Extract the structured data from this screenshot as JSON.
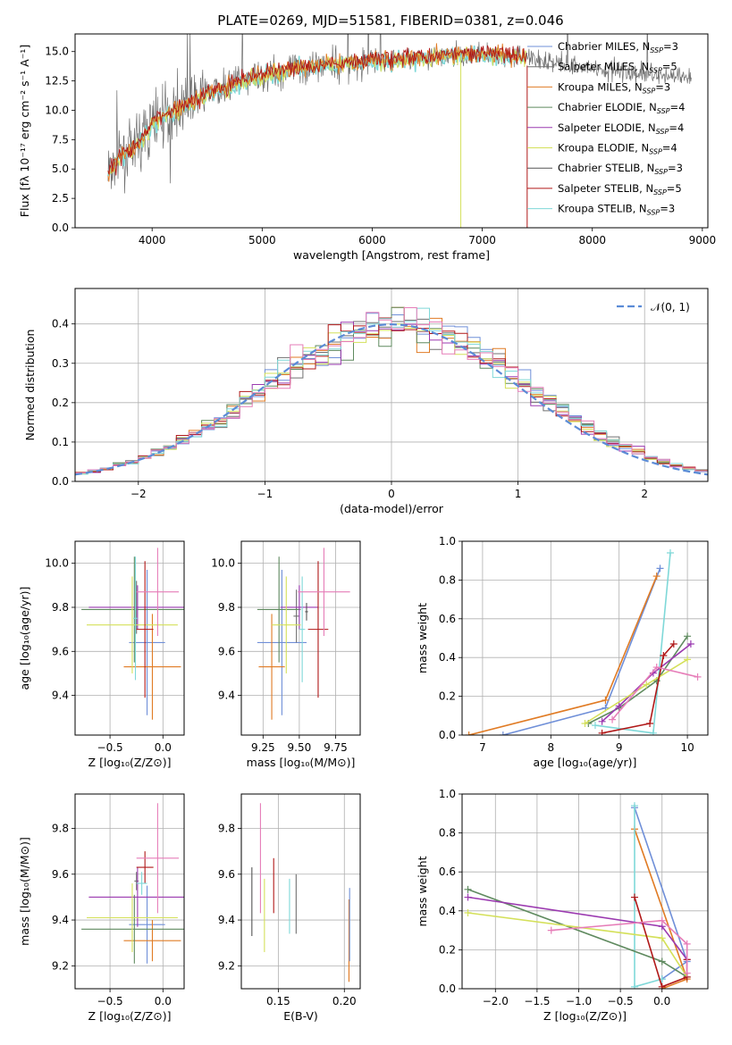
{
  "figure": {
    "title": "PLATE=0269, MJD=51581, FIBERID=0381, z=0.046"
  },
  "series": [
    {
      "name": "Chabrier MILES",
      "nssp": "3",
      "color": "#6f8fd8"
    },
    {
      "name": "Salpeter MILES",
      "nssp": "5",
      "color": "#707070"
    },
    {
      "name": "Kroupa MILES",
      "nssp": "3",
      "color": "#e07b24"
    },
    {
      "name": "Chabrier ELODIE",
      "nssp": "4",
      "color": "#5f8a5f"
    },
    {
      "name": "Salpeter ELODIE",
      "nssp": "4",
      "color": "#9b3ab0"
    },
    {
      "name": "Kroupa ELODIE",
      "nssp": "4",
      "color": "#d4e05a"
    },
    {
      "name": "Chabrier STELIB",
      "nssp": "3",
      "color": "#555555"
    },
    {
      "name": "Salpeter STELIB",
      "nssp": "5",
      "color": "#b01818"
    },
    {
      "name": "Kroupa STELIB",
      "nssp": "3",
      "color": "#7fd8d8"
    },
    {
      "name": "",
      "color": "#e67db8"
    }
  ],
  "chart_data": [
    {
      "id": "spectrum",
      "type": "line",
      "xlabel": "wavelength [Angstrom, rest frame]",
      "ylabel": "Flux [fλ 10⁻¹⁷ erg cm⁻² s⁻¹ A⁻¹]",
      "xlim": [
        3300,
        9050
      ],
      "ylim": [
        0,
        16.5
      ],
      "xticks": [
        4000,
        5000,
        6000,
        7000,
        8000,
        9000
      ],
      "yticks": [
        0.0,
        2.5,
        5.0,
        7.5,
        10.0,
        12.5,
        15.0
      ],
      "grid": false,
      "legend": "top-right",
      "continuum": {
        "x": [
          3600,
          3700,
          3800,
          3900,
          4000,
          4200,
          4500,
          5000,
          5500,
          6000,
          6500,
          7000,
          7400,
          7800,
          8200,
          8600,
          8900
        ],
        "y": [
          4.5,
          6.0,
          6.5,
          7.5,
          8.8,
          10.0,
          11.5,
          13.0,
          13.8,
          14.2,
          14.5,
          14.8,
          14.5,
          13.8,
          13.4,
          13.0,
          12.8
        ]
      },
      "data_range": [
        3600,
        8900
      ],
      "model_range": [
        3600,
        7400
      ]
    },
    {
      "id": "residuals",
      "type": "histogram",
      "xlabel": "(data-model)/error",
      "ylabel": "Normed distribution",
      "xlim": [
        -2.5,
        2.5
      ],
      "ylim": [
        0,
        0.49
      ],
      "xticks": [
        -2,
        -1,
        0,
        1,
        2
      ],
      "yticks": [
        0.0,
        0.1,
        0.2,
        0.3,
        0.4
      ],
      "grid": true,
      "legend": "top-right",
      "reference": {
        "name": "𝒩(0, 1)",
        "mean": 0.0,
        "sigma": 1.0,
        "color": "#5b8bd6"
      },
      "bins": 50
    },
    {
      "id": "age-vs-Z",
      "type": "errorbar",
      "xlabel": "Z [log₁₀(Z/Z⊙)]",
      "ylabel": "age  [log₁₀(age/yr)]",
      "xlim": [
        -0.83,
        0.2
      ],
      "ylim": [
        9.22,
        10.1
      ],
      "xticks": [
        -0.5,
        0.0
      ],
      "yticks": [
        9.4,
        9.6,
        9.8,
        10.0
      ],
      "grid": true,
      "points": [
        {
          "s": 0,
          "x": -0.15,
          "y": 9.64,
          "xerr": 0.17,
          "yerr": 0.33
        },
        {
          "s": 1,
          "x": -0.25,
          "y": 9.8,
          "xerr": 0.02,
          "yerr": 0.12
        },
        {
          "s": 2,
          "x": -0.1,
          "y": 9.53,
          "xerr": 0.27,
          "yerr": 0.24
        },
        {
          "s": 3,
          "x": -0.27,
          "y": 9.79,
          "xerr": 0.5,
          "yerr": 0.24
        },
        {
          "s": 4,
          "x": -0.24,
          "y": 9.8,
          "xerr": 0.46,
          "yerr": 0.1
        },
        {
          "s": 5,
          "x": -0.29,
          "y": 9.72,
          "xerr": 0.43,
          "yerr": 0.22
        },
        {
          "s": 7,
          "x": -0.17,
          "y": 9.7,
          "xerr": 0.08,
          "yerr": 0.31
        },
        {
          "s": 8,
          "x": -0.26,
          "y": 9.75,
          "xerr": 0.02,
          "yerr": 0.28
        },
        {
          "s": 9,
          "x": -0.05,
          "y": 9.87,
          "xerr": 0.2,
          "yerr": 0.2
        }
      ]
    },
    {
      "id": "age-vs-mass",
      "type": "errorbar",
      "xlabel": "mass [log₁₀(M/M⊙)]",
      "ylabel": "",
      "xlim": [
        9.1,
        9.92
      ],
      "ylim": [
        9.22,
        10.1
      ],
      "xticks": [
        9.25,
        9.5,
        9.75
      ],
      "yticks": [
        9.4,
        9.6,
        9.8,
        10.0
      ],
      "grid": true,
      "points": [
        {
          "s": 0,
          "x": 9.38,
          "y": 9.64,
          "xerr": 0.17,
          "yerr": 0.33
        },
        {
          "s": 1,
          "x": 9.48,
          "y": 9.76,
          "xerr": 0.02,
          "yerr": 0.12
        },
        {
          "s": 2,
          "x": 9.31,
          "y": 9.53,
          "xerr": 0.09,
          "yerr": 0.24
        },
        {
          "s": 3,
          "x": 9.36,
          "y": 9.79,
          "xerr": 0.15,
          "yerr": 0.24
        },
        {
          "s": 4,
          "x": 9.5,
          "y": 9.8,
          "xerr": 0.13,
          "yerr": 0.1
        },
        {
          "s": 5,
          "x": 9.41,
          "y": 9.72,
          "xerr": 0.1,
          "yerr": 0.22
        },
        {
          "s": 6,
          "x": 9.55,
          "y": 9.78,
          "xerr": 0.01,
          "yerr": 0.04
        },
        {
          "s": 7,
          "x": 9.63,
          "y": 9.7,
          "xerr": 0.07,
          "yerr": 0.31
        },
        {
          "s": 8,
          "x": 9.52,
          "y": 9.7,
          "xerr": 0.02,
          "yerr": 0.24
        },
        {
          "s": 9,
          "x": 9.67,
          "y": 9.87,
          "xerr": 0.18,
          "yerr": 0.2
        }
      ]
    },
    {
      "id": "weight-vs-age",
      "type": "line",
      "xlabel": "age  [log₁₀(age/yr)]",
      "ylabel": "mass weight",
      "xlim": [
        6.7,
        10.3
      ],
      "ylim": [
        0,
        1.0
      ],
      "xticks": [
        7,
        8,
        9,
        10
      ],
      "yticks": [
        0.0,
        0.2,
        0.4,
        0.6,
        0.8,
        1.0
      ],
      "grid": true,
      "lines": [
        {
          "s": 0,
          "x": [
            7.3,
            8.8,
            9.6
          ],
          "y": [
            0.0,
            0.14,
            0.86
          ]
        },
        {
          "s": 2,
          "x": [
            6.8,
            8.8,
            9.55
          ],
          "y": [
            0.0,
            0.18,
            0.82
          ]
        },
        {
          "s": 8,
          "x": [
            8.65,
            9.5,
            9.75
          ],
          "y": [
            0.05,
            0.01,
            0.94
          ]
        },
        {
          "s": 3,
          "x": [
            8.55,
            9.0,
            9.55,
            10.0
          ],
          "y": [
            0.06,
            0.14,
            0.28,
            0.51
          ]
        },
        {
          "s": 4,
          "x": [
            8.75,
            9.0,
            9.5,
            10.05
          ],
          "y": [
            0.07,
            0.15,
            0.32,
            0.47
          ]
        },
        {
          "s": 5,
          "x": [
            8.5,
            9.4,
            10.0
          ],
          "y": [
            0.06,
            0.26,
            0.39
          ]
        },
        {
          "s": 7,
          "x": [
            8.75,
            9.45,
            9.65,
            9.8
          ],
          "y": [
            0.01,
            0.06,
            0.41,
            0.47
          ]
        },
        {
          "s": 9,
          "x": [
            8.9,
            9.55,
            10.15
          ],
          "y": [
            0.08,
            0.35,
            0.3
          ]
        }
      ]
    },
    {
      "id": "mass-vs-Z",
      "type": "errorbar",
      "xlabel": "Z [log₁₀(Z/Z⊙)]",
      "ylabel": "mass [log₁₀(M/M⊙)]",
      "xlim": [
        -0.83,
        0.2
      ],
      "ylim": [
        9.1,
        9.95
      ],
      "xticks": [
        -0.5,
        0.0
      ],
      "yticks": [
        9.2,
        9.4,
        9.6,
        9.8
      ],
      "grid": true,
      "points": [
        {
          "s": 0,
          "x": -0.15,
          "y": 9.38,
          "xerr": 0.17,
          "yerr": 0.17
        },
        {
          "s": 1,
          "x": -0.25,
          "y": 9.57,
          "xerr": 0.02,
          "yerr": 0.04
        },
        {
          "s": 2,
          "x": -0.1,
          "y": 9.31,
          "xerr": 0.27,
          "yerr": 0.09
        },
        {
          "s": 3,
          "x": -0.27,
          "y": 9.36,
          "xerr": 0.5,
          "yerr": 0.15
        },
        {
          "s": 4,
          "x": -0.24,
          "y": 9.5,
          "xerr": 0.46,
          "yerr": 0.13
        },
        {
          "s": 5,
          "x": -0.29,
          "y": 9.41,
          "xerr": 0.43,
          "yerr": 0.15
        },
        {
          "s": 7,
          "x": -0.17,
          "y": 9.63,
          "xerr": 0.08,
          "yerr": 0.07
        },
        {
          "s": 8,
          "x": -0.2,
          "y": 9.56,
          "xerr": 0.05,
          "yerr": 0.05
        },
        {
          "s": 9,
          "x": -0.05,
          "y": 9.67,
          "xerr": 0.2,
          "yerr": 0.24
        }
      ]
    },
    {
      "id": "mass-vs-EBV",
      "type": "errorbar",
      "xlabel": "E(B-V)",
      "ylabel": "",
      "xlim": [
        0.122,
        0.212
      ],
      "ylim": [
        9.1,
        9.95
      ],
      "xticks": [
        0.15,
        0.2
      ],
      "yticks": [
        9.2,
        9.4,
        9.6,
        9.8
      ],
      "grid": true,
      "points": [
        {
          "s": 6,
          "x": 0.13,
          "y": 9.48,
          "xerr": 0,
          "yerr": 0.15
        },
        {
          "s": 9,
          "x": 0.1365,
          "y": 9.67,
          "xerr": 0,
          "yerr": 0.24
        },
        {
          "s": 5,
          "x": 0.1395,
          "y": 9.42,
          "xerr": 0,
          "yerr": 0.16
        },
        {
          "s": 7,
          "x": 0.1465,
          "y": 9.55,
          "xerr": 0,
          "yerr": 0.12
        },
        {
          "s": 8,
          "x": 0.1585,
          "y": 9.46,
          "xerr": 0,
          "yerr": 0.12
        },
        {
          "s": 1,
          "x": 0.1635,
          "y": 9.47,
          "xerr": 0,
          "yerr": 0.13
        },
        {
          "s": 2,
          "x": 0.2035,
          "y": 9.31,
          "xerr": 0,
          "yerr": 0.18
        },
        {
          "s": 0,
          "x": 0.204,
          "y": 9.38,
          "xerr": 0,
          "yerr": 0.16
        }
      ]
    },
    {
      "id": "weight-vs-Z",
      "type": "line",
      "xlabel": "Z [log₁₀(Z/Z⊙)]",
      "ylabel": "mass weight",
      "xlim": [
        -2.4,
        0.55
      ],
      "ylim": [
        0,
        1.0
      ],
      "xticks": [
        -2.0,
        -1.5,
        -1.0,
        -0.5,
        0.0
      ],
      "yticks": [
        0.0,
        0.2,
        0.4,
        0.6,
        0.8,
        1.0
      ],
      "grid": true,
      "lines": [
        {
          "s": 0,
          "x": [
            -0.33,
            0.3,
            0.0
          ],
          "y": [
            0.93,
            0.14,
            0.05
          ]
        },
        {
          "s": 2,
          "x": [
            -0.33,
            0.3,
            0.0
          ],
          "y": [
            0.82,
            0.05,
            0.0
          ]
        },
        {
          "s": 8,
          "x": [
            -0.33,
            -0.33,
            0.0
          ],
          "y": [
            0.94,
            0.01,
            0.05
          ]
        },
        {
          "s": 3,
          "x": [
            -2.33,
            0.0,
            0.3
          ],
          "y": [
            0.51,
            0.14,
            0.06
          ]
        },
        {
          "s": 4,
          "x": [
            -2.33,
            0.0,
            0.3,
            0.3
          ],
          "y": [
            0.47,
            0.32,
            0.15,
            0.06
          ]
        },
        {
          "s": 5,
          "x": [
            -2.33,
            0.0,
            0.3
          ],
          "y": [
            0.39,
            0.26,
            0.06
          ]
        },
        {
          "s": 7,
          "x": [
            -0.33,
            0.0,
            0.3,
            0.3
          ],
          "y": [
            0.47,
            0.01,
            0.06,
            0.15
          ]
        },
        {
          "s": 9,
          "x": [
            -1.33,
            0.0,
            0.3,
            0.3
          ],
          "y": [
            0.3,
            0.35,
            0.23,
            0.08
          ]
        }
      ]
    }
  ]
}
